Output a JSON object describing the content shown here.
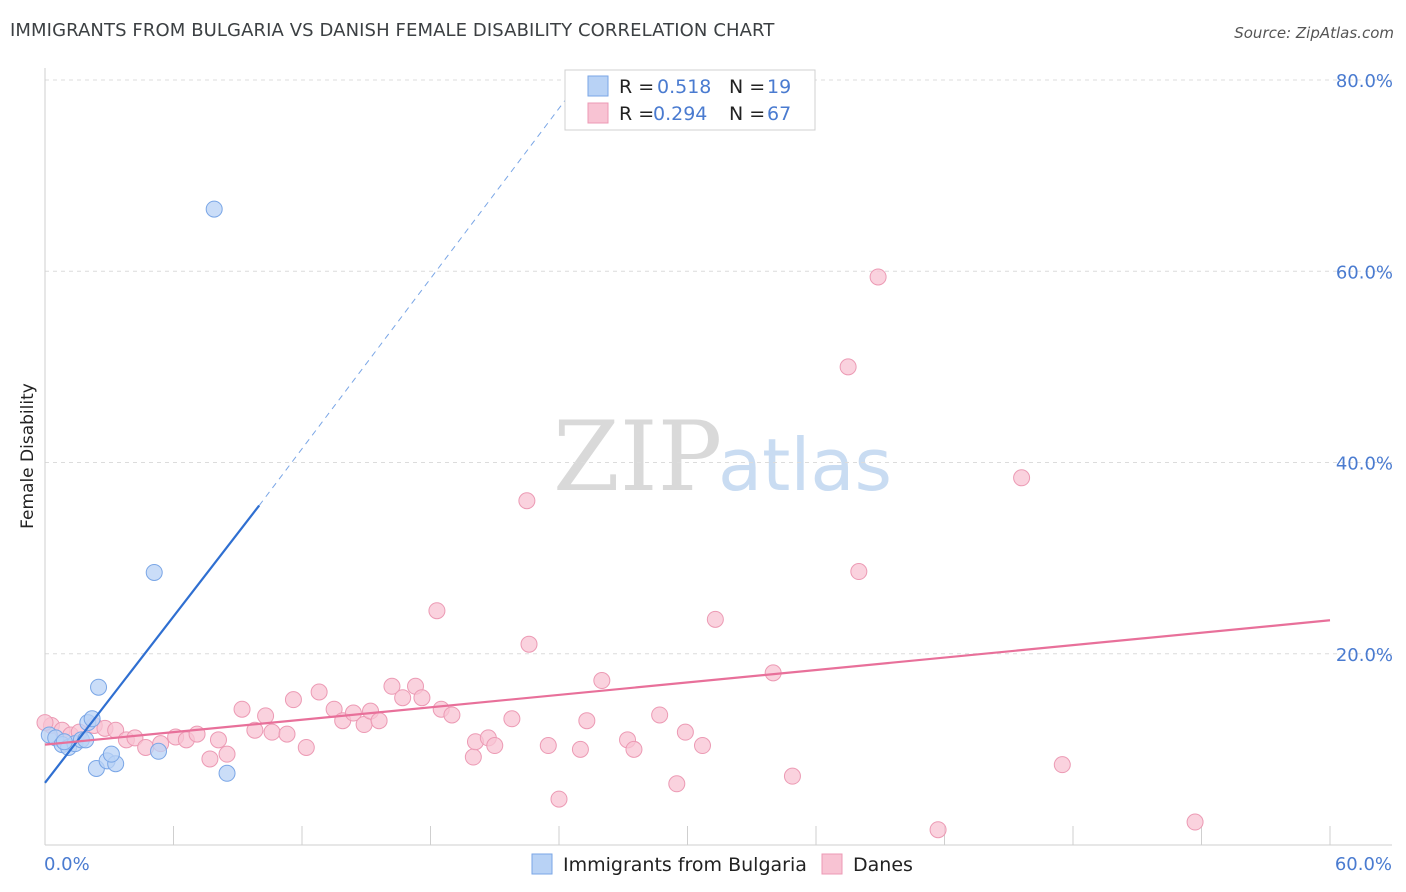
{
  "title": "IMMIGRANTS FROM BULGARIA VS DANISH FEMALE DISABILITY CORRELATION CHART",
  "source": "Source: ZipAtlas.com",
  "watermark": {
    "zip": "ZIP",
    "atlas": "atlas"
  },
  "colors": {
    "blue": "#4a7bd0",
    "blue_fill": "#b8d2f5",
    "blue_stroke": "#7aa6e6",
    "blue_line": "#2f6fd1",
    "pink_fill": "#f8c3d3",
    "pink_stroke": "#ec9ab4",
    "pink_line": "#e8709a",
    "grid": "#dcdcdc"
  },
  "legend": {
    "rows": [
      {
        "r_label": "R =",
        "r_value": "0.518",
        "n_label": "N =",
        "n_value": "19"
      },
      {
        "r_label": "R =",
        "r_value": "0.294",
        "n_label": "N =",
        "n_value": "67"
      }
    ]
  },
  "chart_data": {
    "type": "scatter",
    "title": "IMMIGRANTS FROM BULGARIA VS DANISH FEMALE DISABILITY CORRELATION CHART",
    "xlabel": "",
    "ylabel": "Female Disability",
    "xlim": [
      0,
      60
    ],
    "ylim": [
      0,
      80
    ],
    "x_tick_labels": [
      "0.0%",
      "60.0%"
    ],
    "y_ticks": [
      20,
      40,
      60,
      80
    ],
    "y_tick_labels": [
      "20.0%",
      "40.0%",
      "60.0%",
      "80.0%"
    ],
    "legend_position": "bottom-center",
    "series": [
      {
        "name": "Immigrants from Bulgaria",
        "r": 0.518,
        "n": 19,
        "points": [
          [
            0.2,
            11.5
          ],
          [
            0.5,
            11.2
          ],
          [
            0.8,
            10.5
          ],
          [
            1.1,
            10.2
          ],
          [
            1.4,
            10.6
          ],
          [
            1.7,
            11.0
          ],
          [
            2.0,
            12.8
          ],
          [
            2.2,
            13.2
          ],
          [
            2.5,
            16.5
          ],
          [
            2.4,
            8.0
          ],
          [
            2.9,
            8.8
          ],
          [
            3.3,
            8.5
          ],
          [
            3.1,
            9.5
          ],
          [
            5.1,
            28.5
          ],
          [
            5.3,
            9.8
          ],
          [
            7.9,
            66.5
          ],
          [
            8.5,
            7.5
          ],
          [
            1.9,
            11.0
          ],
          [
            0.9,
            10.8
          ]
        ],
        "trend": {
          "x0": 0.0,
          "y0": 6.5,
          "x1": 10.0,
          "y1": 35.5,
          "dash_to_x": 25.0,
          "dash_to_y": 80.0
        }
      },
      {
        "name": "Danes",
        "r": 0.294,
        "n": 67,
        "points": [
          [
            0.3,
            12.5
          ],
          [
            0.8,
            12.0
          ],
          [
            1.2,
            11.5
          ],
          [
            1.6,
            11.8
          ],
          [
            2.3,
            12.5
          ],
          [
            2.8,
            12.2
          ],
          [
            3.3,
            12.0
          ],
          [
            3.8,
            11.0
          ],
          [
            4.2,
            11.2
          ],
          [
            4.7,
            10.2
          ],
          [
            5.4,
            10.6
          ],
          [
            6.1,
            11.3
          ],
          [
            6.6,
            11.0
          ],
          [
            7.1,
            11.6
          ],
          [
            7.7,
            9.0
          ],
          [
            8.1,
            11.0
          ],
          [
            8.5,
            9.5
          ],
          [
            9.2,
            14.2
          ],
          [
            9.8,
            12.0
          ],
          [
            10.3,
            13.5
          ],
          [
            10.6,
            11.8
          ],
          [
            11.3,
            11.6
          ],
          [
            11.6,
            15.2
          ],
          [
            12.2,
            10.2
          ],
          [
            12.8,
            16.0
          ],
          [
            13.5,
            14.2
          ],
          [
            13.9,
            13.0
          ],
          [
            14.4,
            13.8
          ],
          [
            14.9,
            12.6
          ],
          [
            15.2,
            14.0
          ],
          [
            15.6,
            13.0
          ],
          [
            16.2,
            16.6
          ],
          [
            16.7,
            15.4
          ],
          [
            17.3,
            16.6
          ],
          [
            17.6,
            15.4
          ],
          [
            18.5,
            14.2
          ],
          [
            19.0,
            13.6
          ],
          [
            18.3,
            24.5
          ],
          [
            20.0,
            9.2
          ],
          [
            20.1,
            10.8
          ],
          [
            20.7,
            11.2
          ],
          [
            21.0,
            10.4
          ],
          [
            21.8,
            13.2
          ],
          [
            22.5,
            36.0
          ],
          [
            22.6,
            21.0
          ],
          [
            23.5,
            10.4
          ],
          [
            24.0,
            4.8
          ],
          [
            25.0,
            10.0
          ],
          [
            25.3,
            13.0
          ],
          [
            26.0,
            17.2
          ],
          [
            27.2,
            11.0
          ],
          [
            27.5,
            10.0
          ],
          [
            28.7,
            13.6
          ],
          [
            29.5,
            6.4
          ],
          [
            29.9,
            11.8
          ],
          [
            30.7,
            10.4
          ],
          [
            31.3,
            23.6
          ],
          [
            34.0,
            18.0
          ],
          [
            34.9,
            7.2
          ],
          [
            37.5,
            50.0
          ],
          [
            38.0,
            28.6
          ],
          [
            38.9,
            59.4
          ],
          [
            41.7,
            1.6
          ],
          [
            45.6,
            38.4
          ],
          [
            47.5,
            8.4
          ],
          [
            53.7,
            2.4
          ],
          [
            0.0,
            12.8
          ]
        ],
        "trend": {
          "x0": 0.0,
          "y0": 10.5,
          "x1": 60.0,
          "y1": 23.5
        }
      }
    ]
  }
}
